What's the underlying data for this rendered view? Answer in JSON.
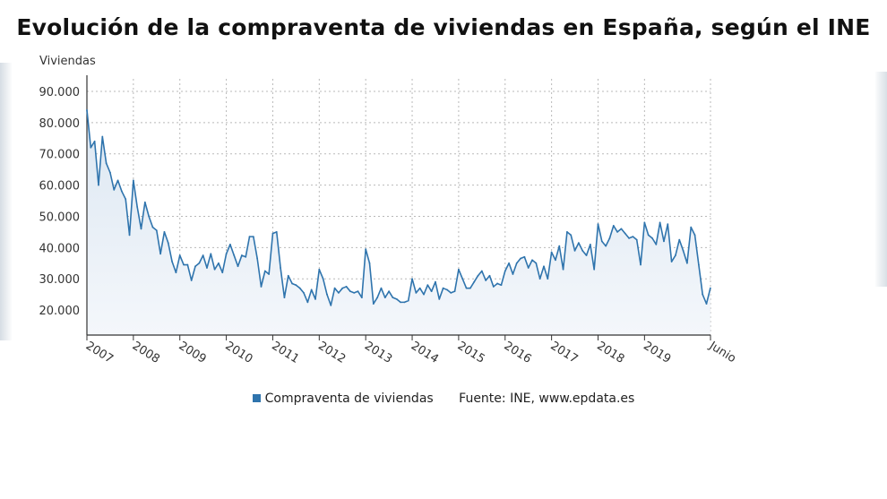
{
  "title": "Evolución de la compraventa de viviendas en España, según el INE",
  "legend": {
    "series_label": "Compraventa de viviendas",
    "source_label": "Fuente: INE, www.epdata.es"
  },
  "colors": {
    "line": "#2f74ad",
    "fill_top": "#dce7f2",
    "fill_bottom": "#f4f7fb",
    "grid": "#b9b9b9",
    "axis": "#333333"
  },
  "chart_data": {
    "type": "area",
    "title": "Evolución de la compraventa de viviendas en España, según el INE",
    "xlabel": "",
    "ylabel": "Viviendas",
    "ylim": [
      12000,
      94000
    ],
    "xlim": [
      2007.0,
      2020.42
    ],
    "grid": true,
    "legend_position": "bottom",
    "y_ticks": [
      20000,
      30000,
      40000,
      50000,
      60000,
      70000,
      80000,
      90000
    ],
    "y_tick_labels": [
      "20.000",
      "30.000",
      "40.000",
      "50.000",
      "60.000",
      "70.000",
      "80.000",
      "90.000"
    ],
    "x_ticks": [
      2007,
      2008,
      2009,
      2010,
      2011,
      2012,
      2013,
      2014,
      2015,
      2016,
      2017,
      2018,
      2019,
      2020.42
    ],
    "x_tick_labels": [
      "2007",
      "2008",
      "2009",
      "2010",
      "2011",
      "2012",
      "2013",
      "2014",
      "2015",
      "2016",
      "2017",
      "2018",
      "2019",
      "Junio"
    ],
    "series": [
      {
        "name": "Compraventa de viviendas",
        "start": "2007-01",
        "frequency": "monthly",
        "values": [
          84000,
          72000,
          74000,
          60000,
          75500,
          67000,
          64000,
          58500,
          61500,
          58000,
          55500,
          44000,
          61500,
          53000,
          46000,
          54500,
          50000,
          46500,
          45500,
          38000,
          45000,
          41500,
          35500,
          32000,
          37500,
          34500,
          34500,
          29500,
          34000,
          35000,
          37500,
          33500,
          38000,
          33000,
          35000,
          32000,
          38000,
          41000,
          37500,
          34000,
          37500,
          37000,
          43500,
          43500,
          36500,
          27500,
          32500,
          31500,
          44500,
          45000,
          33500,
          24000,
          31000,
          28500,
          28000,
          27000,
          25500,
          22500,
          26500,
          23500,
          33000,
          30000,
          25000,
          21500,
          27000,
          25500,
          27000,
          27500,
          26000,
          25500,
          26000,
          24000,
          39500,
          35000,
          22000,
          24000,
          27000,
          24000,
          26000,
          24000,
          23500,
          22500,
          22500,
          23000,
          30000,
          25500,
          27000,
          25000,
          28000,
          26000,
          29000,
          23500,
          27000,
          26500,
          25500,
          26000,
          33000,
          30000,
          27000,
          27000,
          29000,
          31000,
          32500,
          29500,
          31000,
          27500,
          28500,
          28000,
          32500,
          35000,
          31500,
          35000,
          36500,
          37000,
          33500,
          36000,
          35000,
          30000,
          34000,
          30000,
          38500,
          36000,
          40500,
          33000,
          45000,
          44000,
          39000,
          41500,
          39000,
          37500,
          41000,
          33000,
          47500,
          42000,
          40500,
          43000,
          47000,
          45000,
          46000,
          44500,
          43000,
          43500,
          42500,
          34500,
          48000,
          44000,
          43000,
          41000,
          48000,
          42000,
          47500,
          35500,
          37500,
          42500,
          39000,
          35000,
          46500,
          44000,
          34500,
          25000,
          22000,
          27000
        ]
      }
    ]
  }
}
